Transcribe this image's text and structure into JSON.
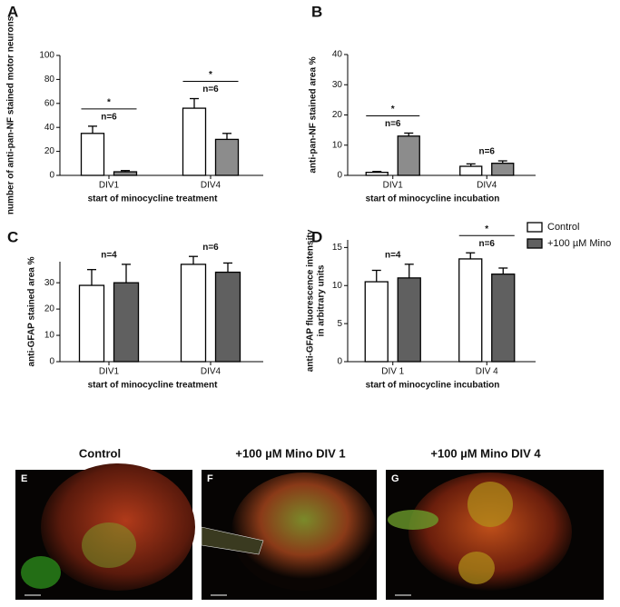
{
  "chart_data": [
    {
      "type": "bar",
      "panel": "A",
      "ylabel": "number of anti-pan-NF stained motor neurons",
      "xlabel": "start of minocycline treatment",
      "categories": [
        "DIV1",
        "DIV4"
      ],
      "series": [
        {
          "color": "#ffffff",
          "values": [
            35,
            56
          ],
          "errors": [
            6,
            8
          ]
        },
        {
          "color": "#8c8c8c",
          "values": [
            3,
            30
          ],
          "errors": [
            1,
            5
          ]
        }
      ],
      "annotations": [
        [
          "n=6",
          "*"
        ],
        [
          "n=6",
          "*"
        ]
      ],
      "ylim": [
        0,
        100
      ],
      "yticks": [
        0,
        20,
        40,
        60,
        80,
        100
      ]
    },
    {
      "type": "bar",
      "panel": "B",
      "ylabel": "anti-pan-NF stained area %",
      "xlabel": "start of minocycline incubation",
      "categories": [
        "DIV1",
        "DIV4"
      ],
      "series": [
        {
          "color": "#ffffff",
          "values": [
            1,
            3
          ],
          "errors": [
            0.3,
            0.8
          ]
        },
        {
          "color": "#8c8c8c",
          "values": [
            13,
            4
          ],
          "errors": [
            1,
            0.8
          ]
        }
      ],
      "annotations": [
        [
          "n=6",
          "*"
        ],
        [
          "n=6"
        ]
      ],
      "ylim": [
        0,
        40
      ],
      "yticks": [
        0,
        10,
        20,
        30,
        40
      ]
    },
    {
      "type": "bar",
      "panel": "C",
      "ylabel": "anti-GFAP stained area %",
      "xlabel": "start of minocycline treatment",
      "categories": [
        "DIV1",
        "DIV4"
      ],
      "series": [
        {
          "color": "#ffffff",
          "values": [
            29,
            37
          ],
          "errors": [
            6,
            3
          ]
        },
        {
          "color": "#606060",
          "values": [
            30,
            34
          ],
          "errors": [
            7,
            3.5
          ]
        }
      ],
      "annotations": [
        [
          "n=4"
        ],
        [
          "n=6"
        ]
      ],
      "ylim": [
        0,
        38
      ],
      "yticks": [
        0,
        10,
        20,
        30
      ]
    },
    {
      "type": "bar",
      "panel": "D",
      "ylabel": [
        "anti-GFAP fluorescence intensity",
        "in arbitrary units"
      ],
      "xlabel": "start of minocycline incubation",
      "categories": [
        "DIV 1",
        "DIV 4"
      ],
      "series": [
        {
          "name": "Control",
          "color": "#ffffff",
          "values": [
            10.5,
            13.5
          ],
          "errors": [
            1.5,
            0.8
          ]
        },
        {
          "name": "+100 µM Mino",
          "color": "#606060",
          "values": [
            11,
            11.5
          ],
          "errors": [
            1.8,
            0.8
          ]
        }
      ],
      "annotations": [
        [
          "n=4"
        ],
        [
          "n=6",
          "*"
        ]
      ],
      "ylim": [
        0,
        16
      ],
      "yticks": [
        0,
        5,
        10,
        15
      ]
    }
  ],
  "images": [
    {
      "panel": "E",
      "title": "Control"
    },
    {
      "panel": "F",
      "title": "+100 µM Mino DIV 1"
    },
    {
      "panel": "G",
      "title": "+100 µM Mino DIV 4"
    }
  ]
}
